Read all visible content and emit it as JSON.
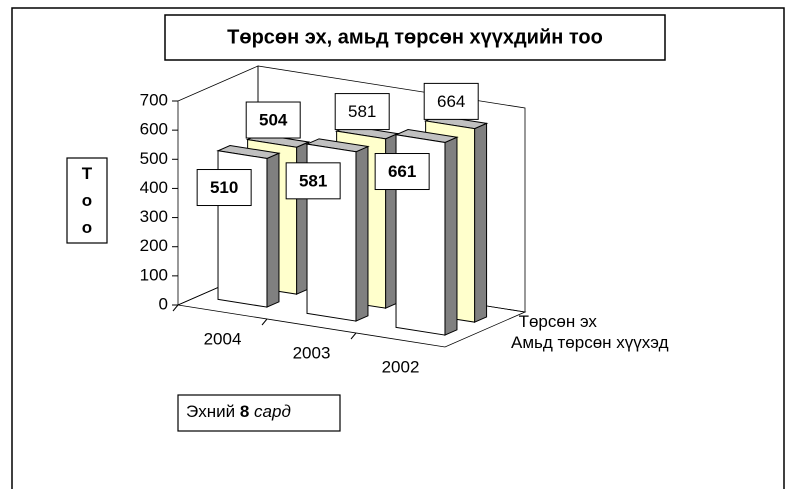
{
  "chart_data": {
    "type": "bar3d",
    "title": "Төрсөн эх, амьд төрсөн хүүхдийн тоо",
    "y_label": "Тоо",
    "annotation": [
      "Эхний",
      "8",
      "сард"
    ],
    "categories": [
      "2004",
      "2003",
      "2002"
    ],
    "series": [
      {
        "name": "Амьд төрсөн хүүхэд",
        "color": "#ffffff",
        "values": [
          510,
          581,
          661
        ]
      },
      {
        "name": "Төрсөн эх",
        "color": "#ffffcc",
        "values": [
          504,
          581,
          664
        ]
      }
    ],
    "ylim": [
      0,
      700
    ],
    "yticks": [
      0,
      100,
      200,
      300,
      400,
      500,
      600,
      700
    ]
  }
}
